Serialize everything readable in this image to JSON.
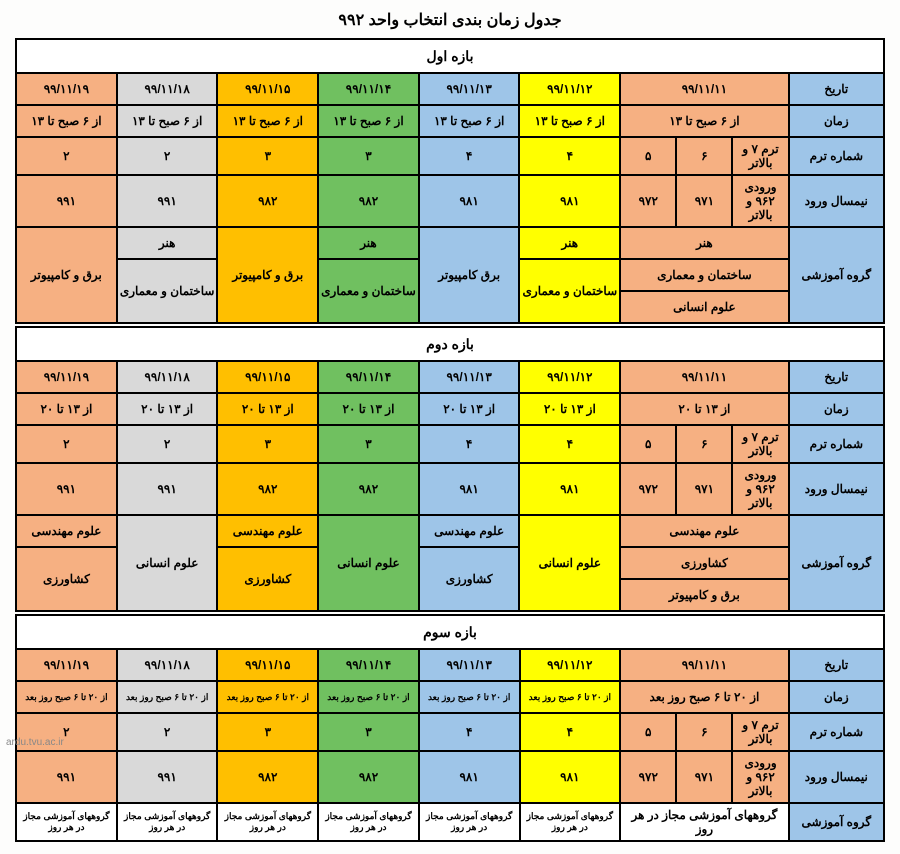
{
  "title": "جدول زمان بندی  انتخاب واحد ۹۹۲",
  "sections": [
    "بازه اول",
    "بازه دوم",
    "بازه سوم"
  ],
  "rowLabels": {
    "date": "تاریخ",
    "time": "زمان",
    "term": "شماره ترم",
    "entry": "نیمسال ورود",
    "group": "گروه آموزشی"
  },
  "dates": {
    "d11": "۹۹/۱۱/۱۱",
    "d12": "۹۹/۱۱/۱۲",
    "d13": "۹۹/۱۱/۱۳",
    "d14": "۹۹/۱۱/۱۴",
    "d15": "۹۹/۱۱/۱۵",
    "d18": "۹۹/۱۱/۱۸",
    "d19": "۹۹/۱۱/۱۹"
  },
  "times": {
    "t1": "از ۶ صبح تا ۱۳",
    "t2": "از ۱۳  تا ۲۰",
    "t3": "از ۲۰ تا ۶ صبح روز بعد"
  },
  "termLabels": {
    "t7plus": "ترم ۷ و بالاتر",
    "t6": "۶",
    "t5": "۵",
    "t4": "۴",
    "t3": "۳",
    "t2": "۲"
  },
  "entryLabels": {
    "e962plus": "ورودی ۹۶۲ و بالاتر",
    "e971": "۹۷۱",
    "e972": "۹۷۲",
    "e981": "۹۸۱",
    "e982": "۹۸۲",
    "e991": "۹۹۱"
  },
  "groups": {
    "honar": "هنر",
    "sakhteman": "ساختمان و معماری",
    "ensani": "علوم انسانی",
    "barq": "برق و کامپیوتر",
    "barqkamp": "برق کامپیوتر",
    "mohandesi": "علوم مهندسی",
    "keshavarzi": "کشاورزی",
    "all": "گروههای آموزشی مجاز در هر روز",
    "allsmall": "گروههای آموزشی مجاز در هر روز"
  },
  "colors": {
    "header": "#9ec5e8",
    "peach": "#f6b082",
    "grey": "#d9d9d9",
    "orange": "#ffbf00",
    "green": "#70c060",
    "lblue": "#9ec5e8",
    "yellow": "#ffff00",
    "white": "#ffffff",
    "border": "#000000"
  },
  "watermark": "ardu.tvu.ac.ir"
}
